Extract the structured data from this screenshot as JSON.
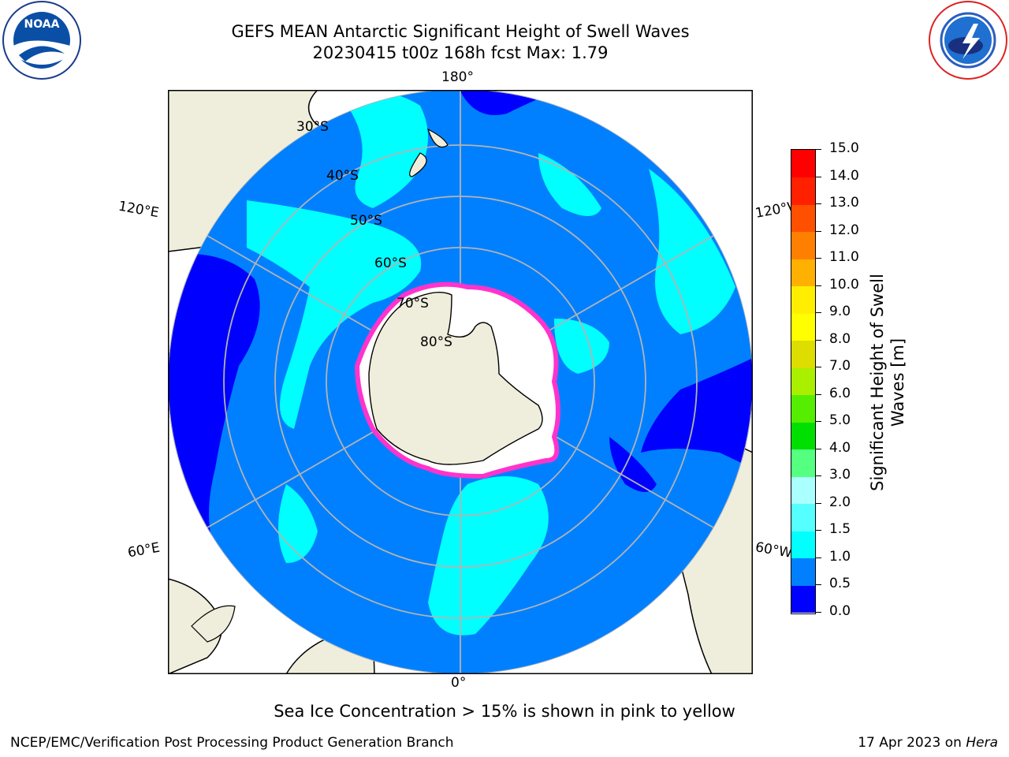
{
  "title": {
    "line1": "GEFS MEAN Antarctic Significant Height of Swell Waves",
    "line2": "20230415 t00z 168h fcst   Max: 1.79"
  },
  "map": {
    "projection": "south-polar-stereographic",
    "meridian_labels": [
      "180°",
      "120°E",
      "120°W",
      "60°E",
      "60°W",
      "0°"
    ],
    "latitude_labels": [
      "30°S",
      "40°S",
      "50°S",
      "60°S",
      "70°S",
      "80°S"
    ],
    "colors": {
      "land": "#efeedc",
      "ocean_0_0_5": "#0000ff",
      "ocean_0_5_1_0": "#0080ff",
      "ocean_1_0_1_5": "#00ffff",
      "ocean_1_5_2_0": "#55ffff",
      "ice_edge": "#ff33cc",
      "ice_interior": "#ffffff",
      "grid": "#b3b3b3"
    }
  },
  "colorbar": {
    "label": "Significant Height of Swell Waves [m]",
    "ticks": [
      "15.0",
      "14.0",
      "13.0",
      "12.0",
      "11.0",
      "10.0",
      "9.0",
      "8.0",
      "7.0",
      "6.0",
      "5.0",
      "4.0",
      "3.0",
      "2.0",
      "1.5",
      "1.0",
      "0.5",
      "0.0"
    ],
    "levels": [
      0.0,
      0.5,
      1.0,
      1.5,
      2.0,
      3.0,
      4.0,
      5.0,
      6.0,
      7.0,
      8.0,
      9.0,
      10.0,
      11.0,
      12.0,
      13.0,
      14.0,
      15.0
    ],
    "colors": [
      "#0000ff",
      "#0080ff",
      "#00ffff",
      "#55ffff",
      "#aaffff",
      "#55ff80",
      "#00e000",
      "#55ee00",
      "#aaee00",
      "#dddd00",
      "#ffff00",
      "#ffee00",
      "#ffb000",
      "#ff8000",
      "#ff5000",
      "#ff2000",
      "#ff0000"
    ]
  },
  "footer": {
    "note": "Sea Ice Concentration > 15% is shown in pink to yellow",
    "credit": "NCEP/EMC/Verification Post Processing Product Generation Branch",
    "date_prefix": "17 Apr 2023 on ",
    "machine": "Hera"
  }
}
